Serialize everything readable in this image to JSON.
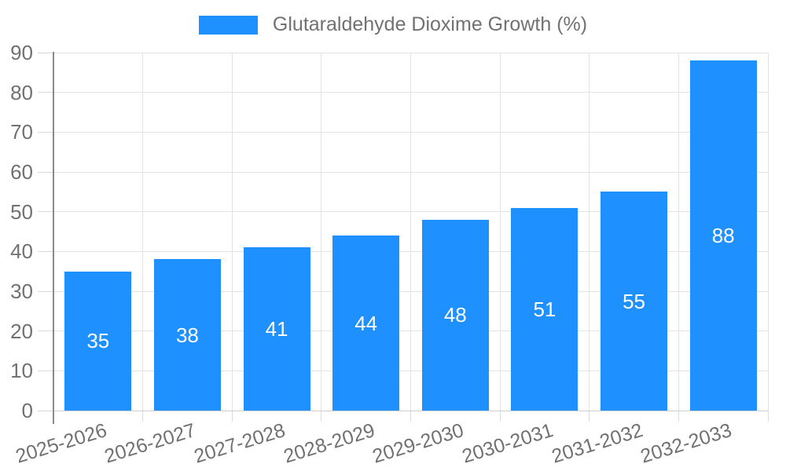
{
  "chart_data": {
    "type": "bar",
    "title": "",
    "legend_label": "Glutaraldehyde Dioxime Growth (%)",
    "categories": [
      "2025-2026",
      "2026-2027",
      "2027-2028",
      "2028-2029",
      "2029-2030",
      "2030-2031",
      "2031-2032",
      "2032-2033"
    ],
    "series": [
      {
        "name": "Glutaraldehyde Dioxime Growth (%)",
        "values": [
          35,
          38,
          41,
          44,
          48,
          51,
          55,
          88
        ]
      }
    ],
    "xlabel": "",
    "ylabel": "",
    "ylim": [
      0,
      90
    ],
    "yticks": [
      0,
      10,
      20,
      30,
      40,
      50,
      60,
      70,
      80,
      90
    ],
    "grid": true,
    "legend_position": "top-center",
    "x_label_rotation_deg": -17,
    "colors": {
      "bar": "#1E90FF",
      "value_label": "#FFFFFF",
      "axis_text": "#717171",
      "legend_text": "#717171",
      "grid": "#E3E3E3",
      "y_axis_line": "#8A8A8A",
      "x_axis_line": "#CFCFCF",
      "tick": "#DADADA",
      "background": "#FFFFFF"
    }
  }
}
